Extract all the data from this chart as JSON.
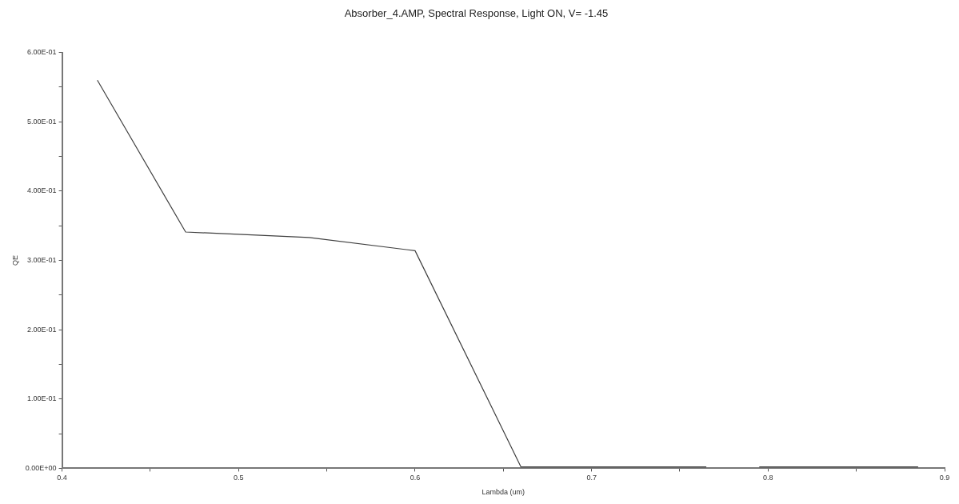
{
  "chart_data": {
    "type": "line",
    "title": "Absorber_4.AMP, Spectral Response, Light ON, V= -1.45",
    "xlabel": "Lambda (um)",
    "ylabel": "QE",
    "series": [
      {
        "color": "#404040",
        "x": [
          0.42,
          0.47,
          0.54,
          0.6,
          0.66,
          0.7,
          0.765,
          0.78,
          0.795,
          0.85,
          0.885
        ],
        "values": [
          0.56,
          0.341,
          0.333,
          0.314,
          0.002,
          0.002,
          0.002,
          null,
          0.002,
          0.002,
          0.002
        ]
      }
    ],
    "xlim": [
      0.4,
      0.9
    ],
    "xticks": [
      0.4,
      {
        "value": 0.45,
        "label": null
      },
      0.5,
      {
        "value": 0.55,
        "label": null
      },
      0.6,
      {
        "value": 0.65,
        "label": null
      },
      0.7,
      {
        "value": 0.75,
        "label": null
      },
      0.8,
      {
        "value": 0.85,
        "label": null
      },
      0.9
    ],
    "ylim": [
      0,
      0.6
    ],
    "yticks": [
      {
        "value": 0,
        "label": "0.00E+00"
      },
      {
        "value": 0.05,
        "label": null
      },
      {
        "value": 0.1,
        "label": "1.00E-01"
      },
      {
        "value": 0.15,
        "label": null
      },
      {
        "value": 0.2,
        "label": "2.00E-01"
      },
      {
        "value": 0.25,
        "label": null
      },
      {
        "value": 0.3,
        "label": "3.00E-01"
      },
      {
        "value": 0.35,
        "label": null
      },
      {
        "value": 0.4,
        "label": "4.00E-01"
      },
      {
        "value": 0.45,
        "label": null
      },
      {
        "value": 0.5,
        "label": "5.00E-01"
      },
      {
        "value": 0.55,
        "label": null
      },
      {
        "value": 0.6,
        "label": "6.00E-01"
      }
    ],
    "grid": false,
    "legend": false,
    "marker": "none",
    "line_style": "solid"
  }
}
